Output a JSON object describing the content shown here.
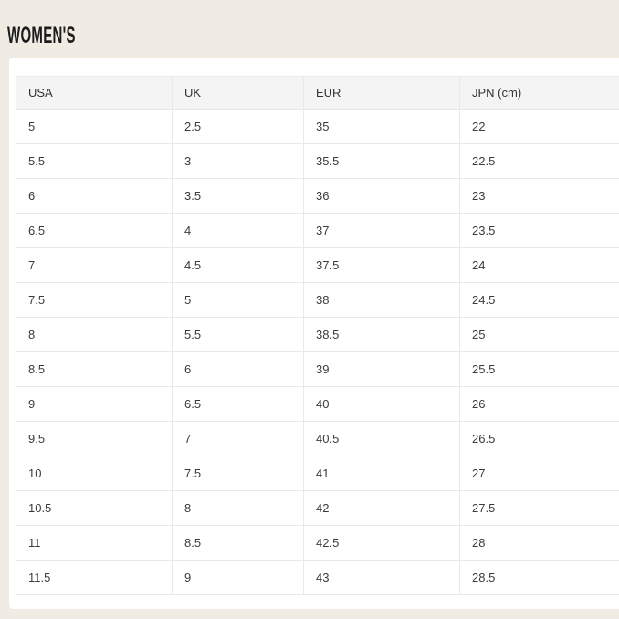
{
  "page": {
    "title": "WOMEN'S"
  },
  "table": {
    "headers": [
      "USA",
      "UK",
      "EUR",
      "JPN (cm)"
    ],
    "rows": [
      [
        "5",
        "2.5",
        "35",
        "22"
      ],
      [
        "5.5",
        "3",
        "35.5",
        "22.5"
      ],
      [
        "6",
        "3.5",
        "36",
        "23"
      ],
      [
        "6.5",
        "4",
        "37",
        "23.5"
      ],
      [
        "7",
        "4.5",
        "37.5",
        "24"
      ],
      [
        "7.5",
        "5",
        "38",
        "24.5"
      ],
      [
        "8",
        "5.5",
        "38.5",
        "25"
      ],
      [
        "8.5",
        "6",
        "39",
        "25.5"
      ],
      [
        "9",
        "6.5",
        "40",
        "26"
      ],
      [
        "9.5",
        "7",
        "40.5",
        "26.5"
      ],
      [
        "10",
        "7.5",
        "41",
        "27"
      ],
      [
        "10.5",
        "8",
        "42",
        "27.5"
      ],
      [
        "11",
        "8.5",
        "42.5",
        "28"
      ],
      [
        "11.5",
        "9",
        "43",
        "28.5"
      ]
    ]
  },
  "colors": {
    "page_background": "#F0ECE3",
    "panel_background": "#FFFFFF",
    "header_row_background": "#F4F4F4",
    "cell_border": "#E9E9E9",
    "cell_text": "#3B3B3B",
    "title_text": "#1C1C1C"
  }
}
